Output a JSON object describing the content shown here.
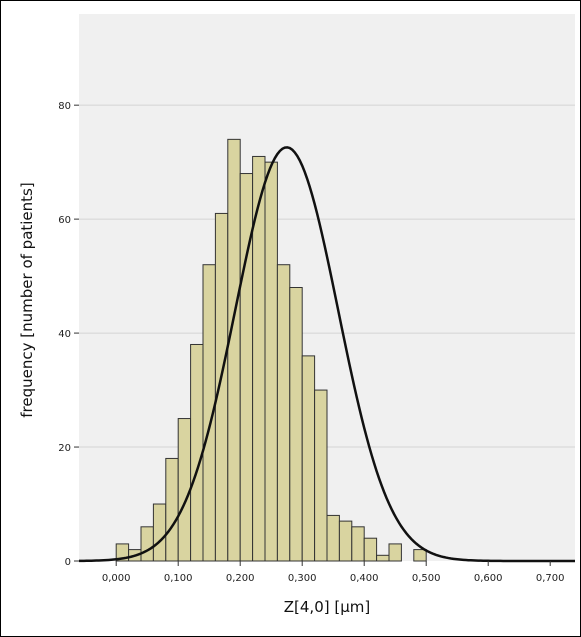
{
  "chart_data": {
    "type": "bar",
    "title": "",
    "xlabel": "Z[4,0] [µm]",
    "ylabel": "frequency [number of patients]",
    "xlim": [
      -0.06,
      0.74
    ],
    "ylim": [
      0,
      96
    ],
    "x_ticks": [
      0.0,
      0.1,
      0.2,
      0.3,
      0.4,
      0.5,
      0.6,
      0.7
    ],
    "x_tick_labels": [
      "0,000",
      "0,100",
      "0,200",
      "0,300",
      "0,400",
      "0,500",
      "0,600",
      "0,700"
    ],
    "y_ticks": [
      0,
      20,
      40,
      60,
      80
    ],
    "y_tick_labels": [
      "0",
      "20",
      "40",
      "60",
      "80"
    ],
    "grid": "horizontal",
    "bin_width": 0.02,
    "bins": [
      {
        "start": 0.0,
        "count": 3
      },
      {
        "start": 0.02,
        "count": 2
      },
      {
        "start": 0.04,
        "count": 6
      },
      {
        "start": 0.06,
        "count": 10
      },
      {
        "start": 0.08,
        "count": 18
      },
      {
        "start": 0.1,
        "count": 25
      },
      {
        "start": 0.12,
        "count": 38
      },
      {
        "start": 0.14,
        "count": 52
      },
      {
        "start": 0.16,
        "count": 61
      },
      {
        "start": 0.18,
        "count": 74
      },
      {
        "start": 0.2,
        "count": 68
      },
      {
        "start": 0.22,
        "count": 71
      },
      {
        "start": 0.24,
        "count": 70
      },
      {
        "start": 0.26,
        "count": 52
      },
      {
        "start": 0.28,
        "count": 48
      },
      {
        "start": 0.3,
        "count": 36
      },
      {
        "start": 0.32,
        "count": 30
      },
      {
        "start": 0.34,
        "count": 8
      },
      {
        "start": 0.36,
        "count": 7
      },
      {
        "start": 0.38,
        "count": 6
      },
      {
        "start": 0.4,
        "count": 4
      },
      {
        "start": 0.42,
        "count": 1
      },
      {
        "start": 0.44,
        "count": 3
      },
      {
        "start": 0.48,
        "count": 2
      }
    ],
    "normal_curve": {
      "mean": 0.275,
      "sd": 0.083,
      "peak": 72.6
    },
    "colors": {
      "bar": "#d9d4a0",
      "bar_edge": "#333333",
      "curve": "#111111",
      "plot_bg": "#f0f0f0"
    }
  }
}
